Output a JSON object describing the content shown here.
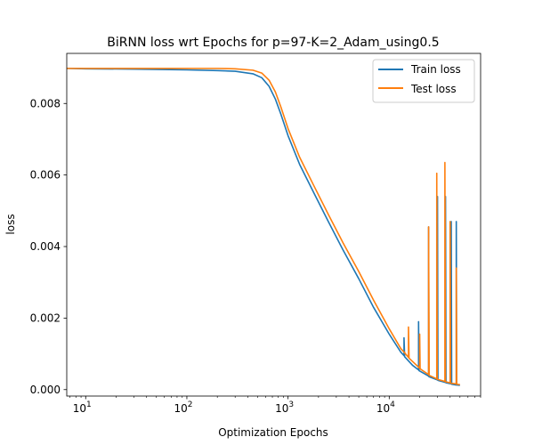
{
  "chart_data": {
    "type": "line",
    "title": "BiRNN loss wrt Epochs for p=97-K=2_Adam_using0.5",
    "xlabel": "Optimization Epochs",
    "ylabel": "loss",
    "x_scale": "log",
    "xlim": [
      6.5,
      80000
    ],
    "ylim": [
      -0.00018,
      0.0094
    ],
    "grid": false,
    "legend_placement": "top-right",
    "xticks": [
      {
        "value": 10,
        "base": "10",
        "exp": "1"
      },
      {
        "value": 100,
        "base": "10",
        "exp": "2"
      },
      {
        "value": 1000,
        "base": "10",
        "exp": "3"
      },
      {
        "value": 10000,
        "base": "10",
        "exp": "4"
      }
    ],
    "yticks": [
      {
        "value": 0.0,
        "label": "0.000"
      },
      {
        "value": 0.002,
        "label": "0.002"
      },
      {
        "value": 0.004,
        "label": "0.004"
      },
      {
        "value": 0.006,
        "label": "0.006"
      },
      {
        "value": 0.008,
        "label": "0.008"
      }
    ],
    "series": [
      {
        "name": "Train loss",
        "color": "#1f77b4",
        "points": [
          [
            6.5,
            0.00898
          ],
          [
            10,
            0.00897
          ],
          [
            30,
            0.00896
          ],
          [
            100,
            0.00894
          ],
          [
            200,
            0.00892
          ],
          [
            300,
            0.0089
          ],
          [
            450,
            0.00883
          ],
          [
            550,
            0.00872
          ],
          [
            650,
            0.00848
          ],
          [
            750,
            0.00812
          ],
          [
            850,
            0.0077
          ],
          [
            1000,
            0.0071
          ],
          [
            1300,
            0.0063
          ],
          [
            1800,
            0.0055
          ],
          [
            2500,
            0.0047
          ],
          [
            3500,
            0.0039
          ],
          [
            5000,
            0.0031
          ],
          [
            7000,
            0.0023
          ],
          [
            10000,
            0.00155
          ],
          [
            13000,
            0.00105
          ],
          [
            14000,
            0.00095
          ],
          [
            14000,
            0.00145
          ],
          [
            14200,
            0.00092
          ],
          [
            17000,
            0.00068
          ],
          [
            19500,
            0.00055
          ],
          [
            19500,
            0.0019
          ],
          [
            19700,
            0.00053
          ],
          [
            24500,
            0.00038
          ],
          [
            24500,
            0.00455
          ],
          [
            24700,
            0.00036
          ],
          [
            30000,
            0.00027
          ],
          [
            30000,
            0.0054
          ],
          [
            30300,
            0.00026
          ],
          [
            36000,
            0.0002
          ],
          [
            36000,
            0.0054
          ],
          [
            36400,
            0.00019
          ],
          [
            41000,
            0.00016
          ],
          [
            41000,
            0.0047
          ],
          [
            41400,
            0.00015
          ],
          [
            46000,
            0.00013
          ],
          [
            46000,
            0.0047
          ],
          [
            46400,
            0.00013
          ],
          [
            50000,
            0.00012
          ]
        ]
      },
      {
        "name": "Test loss",
        "color": "#ff7f0e",
        "points": [
          [
            6.5,
            0.00898
          ],
          [
            10,
            0.00898
          ],
          [
            30,
            0.00898
          ],
          [
            100,
            0.00898
          ],
          [
            200,
            0.00898
          ],
          [
            300,
            0.00897
          ],
          [
            450,
            0.00893
          ],
          [
            550,
            0.00885
          ],
          [
            650,
            0.00865
          ],
          [
            750,
            0.00832
          ],
          [
            850,
            0.0079
          ],
          [
            1000,
            0.0073
          ],
          [
            1300,
            0.0065
          ],
          [
            1800,
            0.0057
          ],
          [
            2500,
            0.0049
          ],
          [
            3500,
            0.0041
          ],
          [
            5000,
            0.0033
          ],
          [
            7000,
            0.0025
          ],
          [
            10000,
            0.0017
          ],
          [
            13000,
            0.00115
          ],
          [
            14000,
            0.00105
          ],
          [
            15500,
            0.0009
          ],
          [
            15500,
            0.00175
          ],
          [
            15700,
            0.00088
          ],
          [
            20000,
            0.0006
          ],
          [
            20000,
            0.00155
          ],
          [
            20200,
            0.00058
          ],
          [
            24500,
            0.00042
          ],
          [
            24500,
            0.00455
          ],
          [
            24800,
            0.0004
          ],
          [
            29500,
            0.0003
          ],
          [
            29500,
            0.00605
          ],
          [
            29800,
            0.00029
          ],
          [
            35500,
            0.00023
          ],
          [
            35500,
            0.00635
          ],
          [
            35900,
            0.00022
          ],
          [
            40000,
            0.00019
          ],
          [
            40000,
            0.0047
          ],
          [
            40400,
            0.00018
          ],
          [
            46000,
            0.00016
          ],
          [
            46000,
            0.0034
          ],
          [
            46400,
            0.00015
          ],
          [
            50000,
            0.00014
          ]
        ]
      }
    ]
  }
}
